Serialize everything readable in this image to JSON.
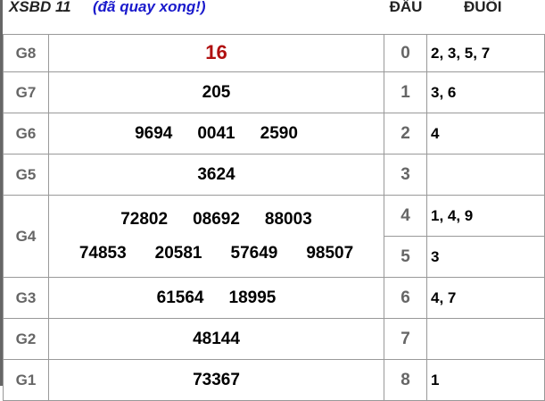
{
  "header": {
    "title": "XSBD 11",
    "status": "(đã quay xong!)",
    "col_dau": "ĐẦU",
    "col_duoi": "ĐUÔI"
  },
  "prizes": [
    {
      "label": "G8",
      "lines": [
        [
          "16"
        ]
      ],
      "highlight": "#b01010"
    },
    {
      "label": "G7",
      "lines": [
        [
          "205"
        ]
      ]
    },
    {
      "label": "G6",
      "lines": [
        [
          "9694",
          "0041",
          "2590"
        ]
      ]
    },
    {
      "label": "G5",
      "lines": [
        [
          "3624"
        ]
      ]
    },
    {
      "label": "G4",
      "lines": [
        [
          "72802",
          "08692",
          "88003"
        ],
        [
          "74853",
          "20581",
          "57649",
          "98507"
        ]
      ]
    },
    {
      "label": "G3",
      "lines": [
        [
          "61564",
          "18995"
        ]
      ]
    },
    {
      "label": "G2",
      "lines": [
        [
          "48144"
        ]
      ]
    },
    {
      "label": "G1",
      "lines": [
        [
          "73367"
        ]
      ]
    }
  ],
  "loto": [
    {
      "head": "0",
      "tails": "2, 3, 5, 7"
    },
    {
      "head": "1",
      "tails": "3, 6"
    },
    {
      "head": "2",
      "tails": "4"
    },
    {
      "head": "3",
      "tails": ""
    },
    {
      "head": "4",
      "tails": "1, 4, 9"
    },
    {
      "head": "5",
      "tails": "3"
    },
    {
      "head": "6",
      "tails": "4, 7"
    },
    {
      "head": "7",
      "tails": ""
    },
    {
      "head": "8",
      "tails": "1"
    }
  ]
}
